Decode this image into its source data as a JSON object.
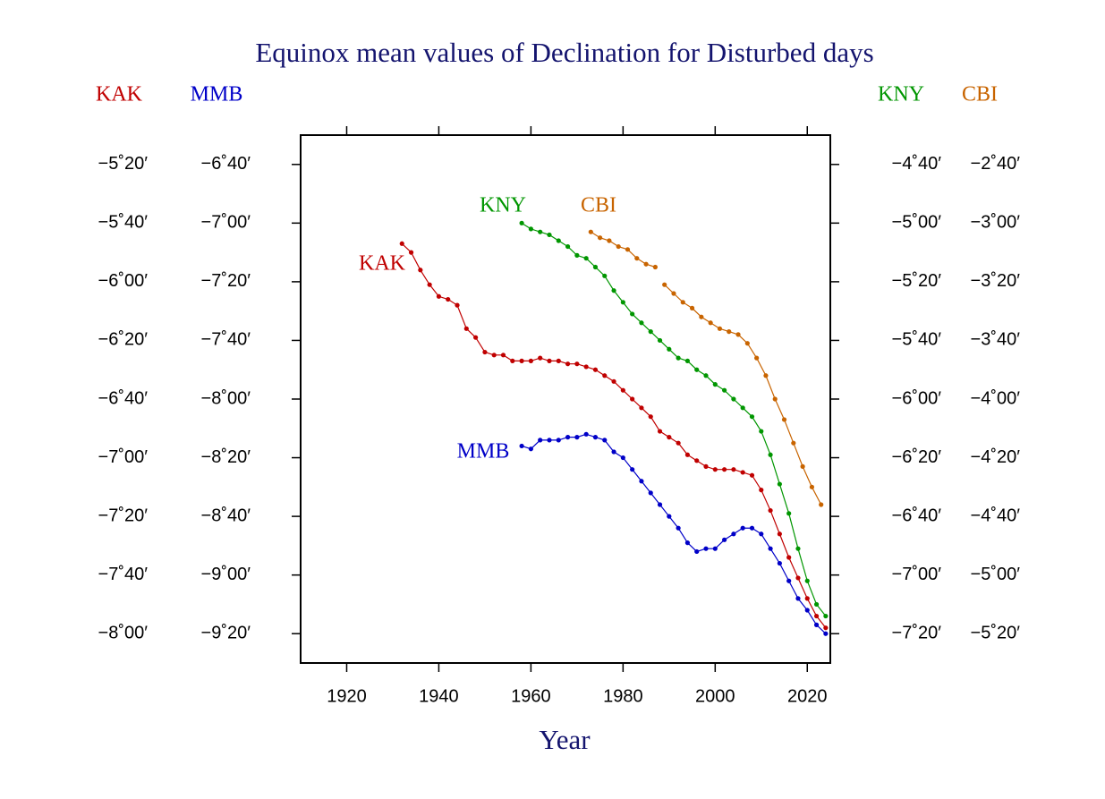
{
  "chart_data": {
    "type": "line",
    "title": "Equinox mean values of Declination for Disturbed days",
    "x_label": "Year",
    "xlim": [
      1910,
      2025
    ],
    "xticks": [
      1920,
      1940,
      1960,
      1980,
      2000,
      2020
    ],
    "series": [
      {
        "name": "KAK",
        "color": "#c00000",
        "side": "left",
        "ylim": [
          -490,
          -310
        ],
        "yticks": [
          {
            "value": -320,
            "label": "−5˚20′"
          },
          {
            "value": -340,
            "label": "−5˚40′"
          },
          {
            "value": -360,
            "label": "−6˚00′"
          },
          {
            "value": -380,
            "label": "−6˚20′"
          },
          {
            "value": -400,
            "label": "−6˚40′"
          },
          {
            "value": -420,
            "label": "−7˚00′"
          },
          {
            "value": -440,
            "label": "−7˚20′"
          },
          {
            "value": -460,
            "label": "−7˚40′"
          },
          {
            "value": -480,
            "label": "−8˚00′"
          }
        ],
        "x": [
          1932,
          1934,
          1936,
          1938,
          1940,
          1942,
          1944,
          1946,
          1948,
          1950,
          1952,
          1954,
          1956,
          1958,
          1960,
          1962,
          1964,
          1966,
          1968,
          1970,
          1972,
          1974,
          1976,
          1978,
          1980,
          1982,
          1984,
          1986,
          1988,
          1990,
          1992,
          1994,
          1996,
          1998,
          2000,
          2002,
          2004,
          2006,
          2008,
          2010,
          2012,
          2014,
          2016,
          2018,
          2020,
          2022,
          2024
        ],
        "values": [
          -347,
          -350,
          -356,
          -361,
          -365,
          -366,
          -368,
          -376,
          -379,
          -384,
          -385,
          -385,
          -387,
          -387,
          -387,
          -386,
          -387,
          -387,
          -388,
          -388,
          -389,
          -390,
          -392,
          -394,
          -397,
          -400,
          -403,
          -406,
          -411,
          -413,
          -415,
          -419,
          -421,
          -423,
          -424,
          -424,
          -424,
          -425,
          -426,
          -431,
          -438,
          -446,
          -454,
          -461,
          -468,
          -474,
          -478
        ]
      },
      {
        "name": "MMB",
        "color": "#0000c8",
        "side": "left",
        "ylim": [
          -570,
          -390
        ],
        "yticks": [
          {
            "value": -400,
            "label": "−6˚40′"
          },
          {
            "value": -420,
            "label": "−7˚00′"
          },
          {
            "value": -440,
            "label": "−7˚20′"
          },
          {
            "value": -460,
            "label": "−7˚40′"
          },
          {
            "value": -480,
            "label": "−8˚00′"
          },
          {
            "value": -500,
            "label": "−8˚20′"
          },
          {
            "value": -520,
            "label": "−8˚40′"
          },
          {
            "value": -540,
            "label": "−9˚00′"
          },
          {
            "value": -560,
            "label": "−9˚20′"
          }
        ],
        "x": [
          1958,
          1960,
          1962,
          1964,
          1966,
          1968,
          1970,
          1972,
          1974,
          1976,
          1978,
          1980,
          1982,
          1984,
          1986,
          1988,
          1990,
          1992,
          1994,
          1996,
          1998,
          2000,
          2002,
          2004,
          2006,
          2008,
          2010,
          2012,
          2014,
          2016,
          2018,
          2020,
          2022,
          2024
        ],
        "values": [
          -496,
          -497,
          -494,
          -494,
          -494,
          -493,
          -493,
          -492,
          -493,
          -494,
          -498,
          -500,
          -504,
          -508,
          -512,
          -516,
          -520,
          -524,
          -529,
          -532,
          -531,
          -531,
          -528,
          -526,
          -524,
          -524,
          -526,
          -531,
          -536,
          -542,
          -548,
          -552,
          -557,
          -560
        ]
      },
      {
        "name": "KNY",
        "color": "#009600",
        "side": "right",
        "ylim": [
          -450,
          -270
        ],
        "yticks": [
          {
            "value": -280,
            "label": "−4˚40′"
          },
          {
            "value": -300,
            "label": "−5˚00′"
          },
          {
            "value": -320,
            "label": "−5˚20′"
          },
          {
            "value": -340,
            "label": "−5˚40′"
          },
          {
            "value": -360,
            "label": "−6˚00′"
          },
          {
            "value": -380,
            "label": "−6˚20′"
          },
          {
            "value": -400,
            "label": "−6˚40′"
          },
          {
            "value": -420,
            "label": "−7˚00′"
          },
          {
            "value": -440,
            "label": "−7˚20′"
          }
        ],
        "x": [
          1958,
          1960,
          1962,
          1964,
          1966,
          1968,
          1970,
          1972,
          1974,
          1976,
          1978,
          1980,
          1982,
          1984,
          1986,
          1988,
          1990,
          1992,
          1994,
          1996,
          1998,
          2000,
          2002,
          2004,
          2006,
          2008,
          2010,
          2012,
          2014,
          2016,
          2018,
          2020,
          2022,
          2024
        ],
        "values": [
          -300,
          -302,
          -303,
          -304,
          -306,
          -308,
          -311,
          -312,
          -315,
          -318,
          -323,
          -327,
          -331,
          -334,
          -337,
          -340,
          -343,
          -346,
          -347,
          -350,
          -352,
          -355,
          -357,
          -360,
          -363,
          -366,
          -371,
          -379,
          -389,
          -399,
          -411,
          -422,
          -430,
          -434
        ]
      },
      {
        "name": "CBI",
        "color": "#c86400",
        "side": "right",
        "ylim": [
          -330,
          -150
        ],
        "yticks": [
          {
            "value": -160,
            "label": "−2˚40′"
          },
          {
            "value": -180,
            "label": "−3˚00′"
          },
          {
            "value": -200,
            "label": "−3˚20′"
          },
          {
            "value": -220,
            "label": "−3˚40′"
          },
          {
            "value": -240,
            "label": "−4˚00′"
          },
          {
            "value": -260,
            "label": "−4˚20′"
          },
          {
            "value": -280,
            "label": "−4˚40′"
          },
          {
            "value": -300,
            "label": "−5˚00′"
          },
          {
            "value": -320,
            "label": "−5˚20′"
          }
        ],
        "x": [
          1973,
          1975,
          1977,
          1979,
          1981,
          1983,
          1985,
          1987,
          1988,
          1989,
          1991,
          1993,
          1995,
          1997,
          1999,
          2001,
          2003,
          2005,
          2007,
          2009,
          2011,
          2013,
          2015,
          2017,
          2019,
          2021,
          2023
        ],
        "values": [
          -183,
          -185,
          -186,
          -188,
          -189,
          -192,
          -194,
          -195,
          null,
          -201,
          -204,
          -207,
          -209,
          -212,
          -214,
          -216,
          -217,
          -218,
          -221,
          -226,
          -232,
          -240,
          -247,
          -255,
          -263,
          -270,
          -276
        ]
      }
    ]
  }
}
